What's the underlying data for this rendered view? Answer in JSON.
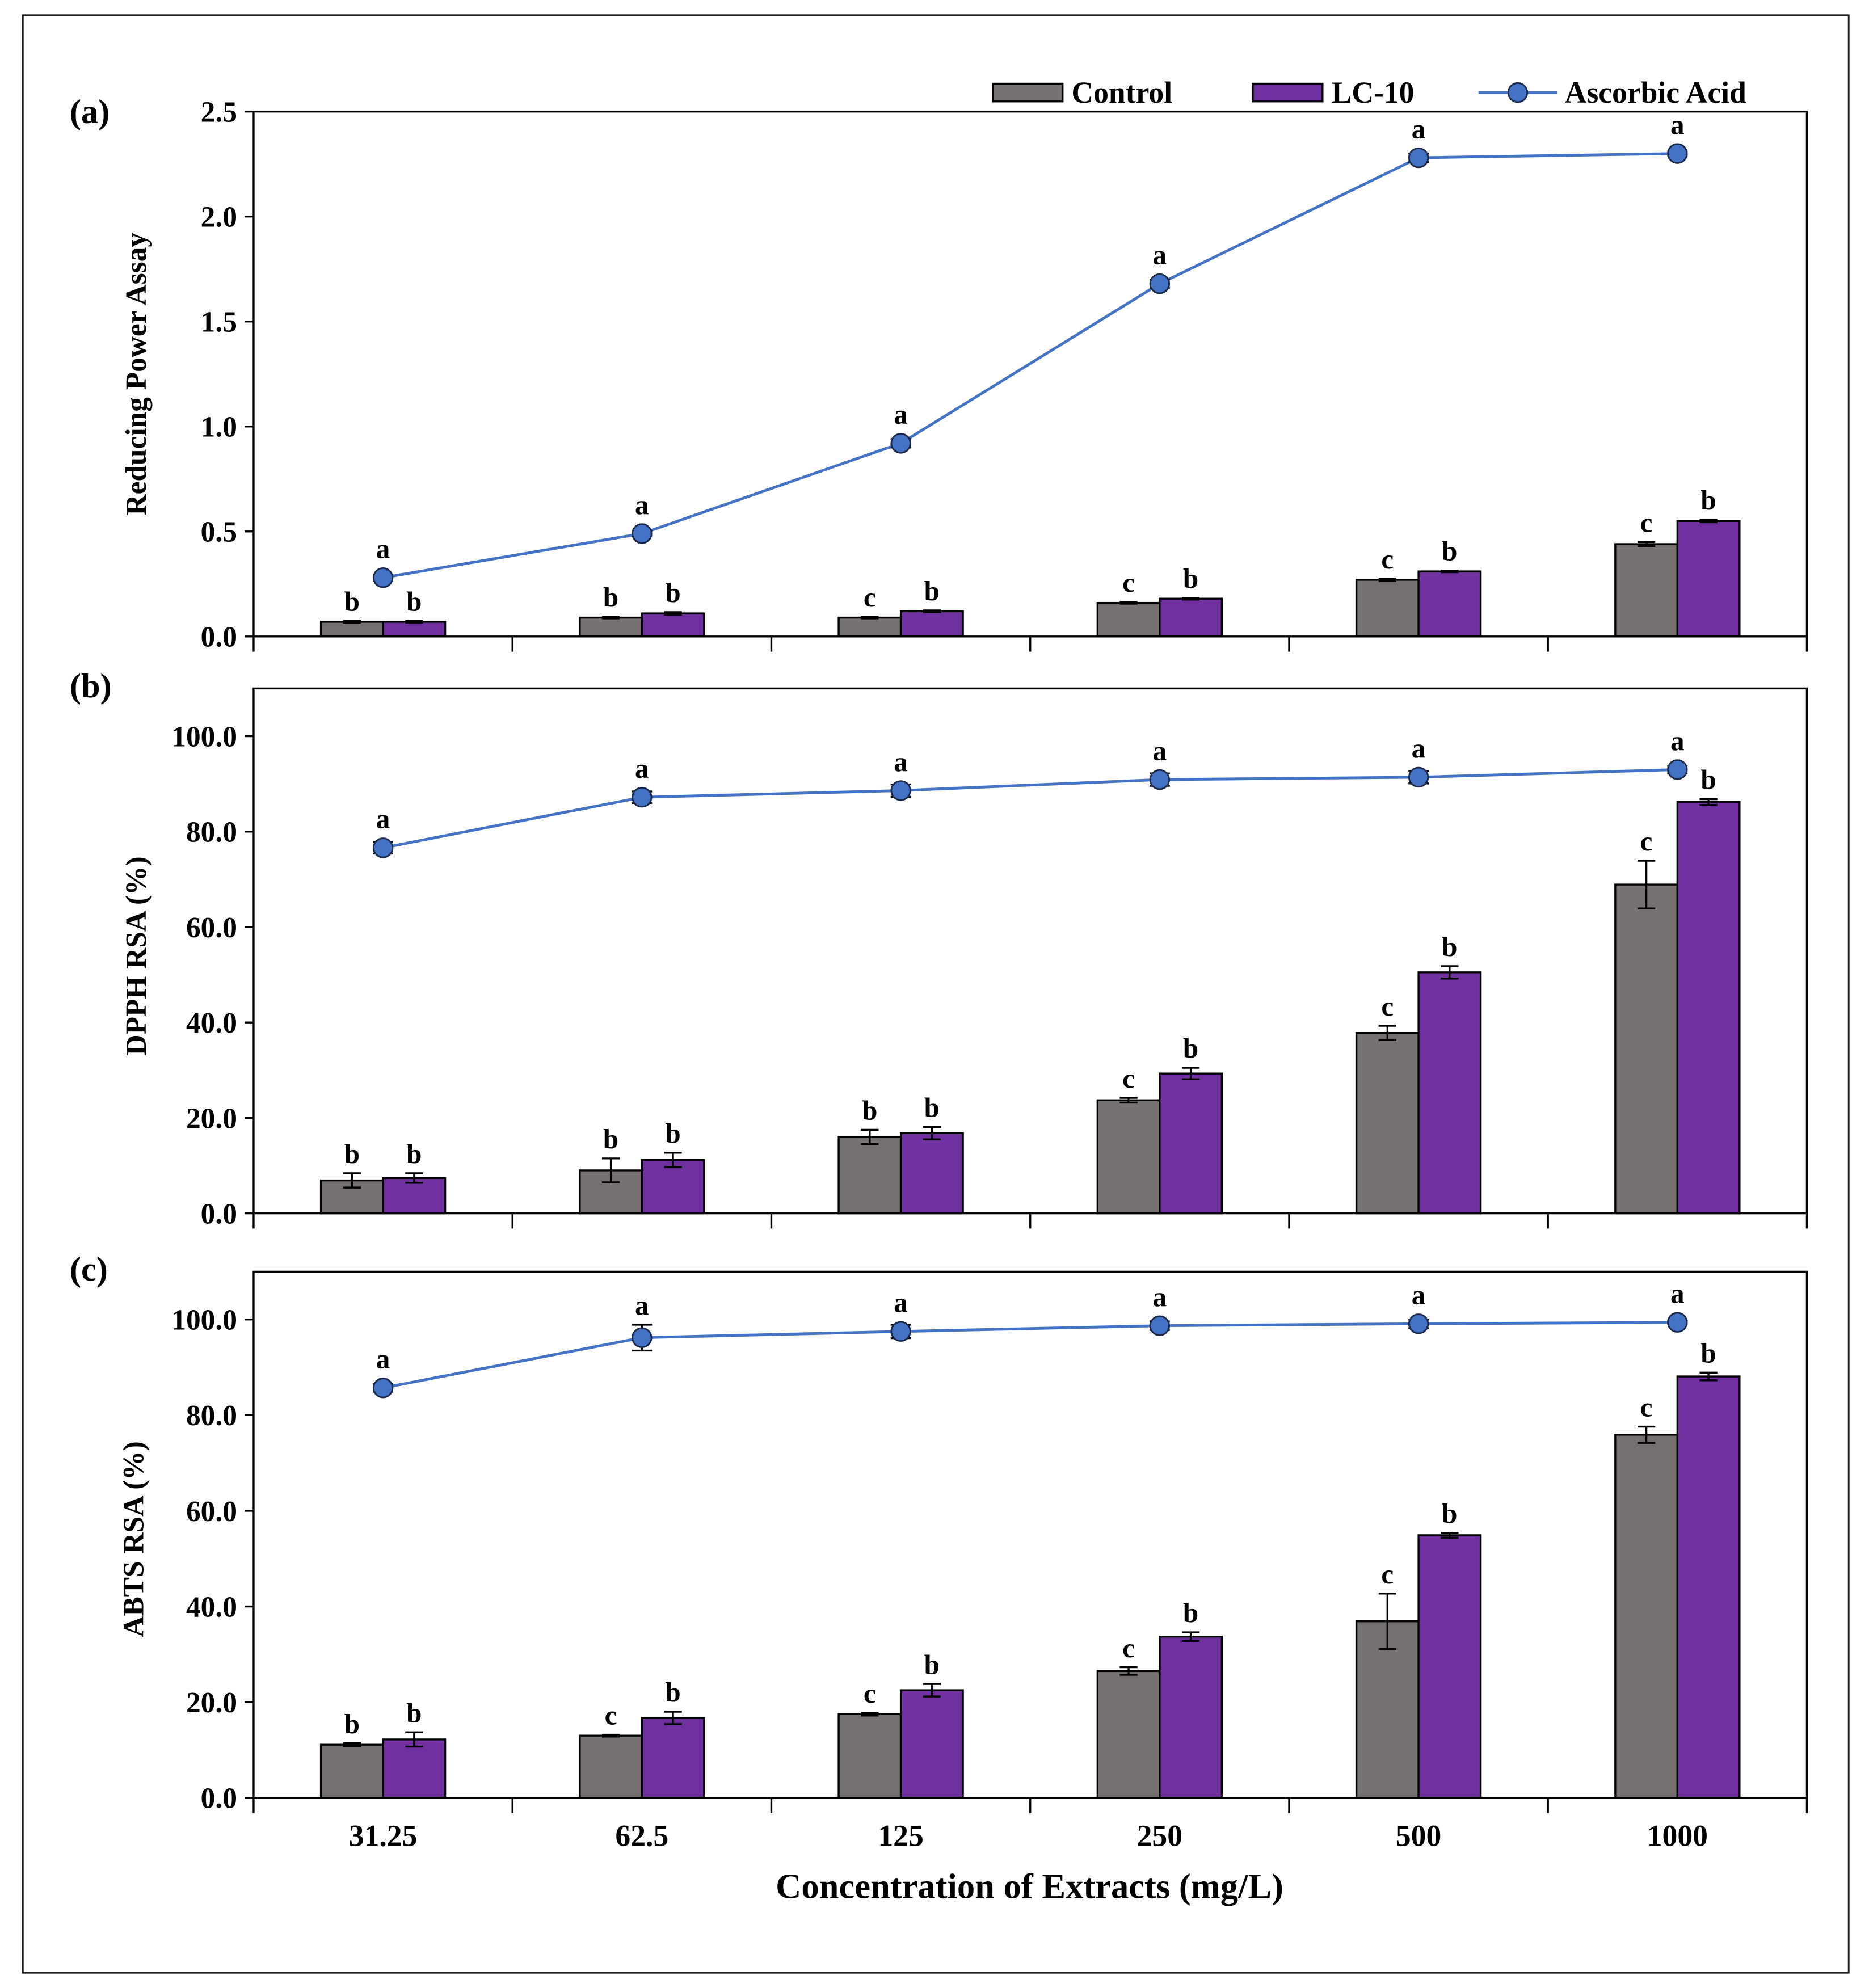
{
  "colors": {
    "control": "#767171",
    "lc10": "#7030a0",
    "ascorbic_line": "#4472c4",
    "ascorbic_marker": "#4472c4"
  },
  "chart_data": [
    {
      "type": "bar",
      "panel_label": "(a)",
      "ylabel": "Reducing Power Assay",
      "ylim": [
        0,
        2.5
      ],
      "y_ticks": [
        "0.0",
        "0.5",
        "1.0",
        "1.5",
        "2.0",
        "2.5"
      ],
      "series": [
        {
          "name": "Control",
          "type": "bar",
          "values": [
            0.07,
            0.09,
            0.09,
            0.16,
            0.27,
            0.44
          ],
          "errors": [
            0.004,
            0.004,
            0.004,
            0.004,
            0.006,
            0.01
          ],
          "letters": [
            "b",
            "b",
            "c",
            "c",
            "c",
            "c"
          ]
        },
        {
          "name": "LC-10",
          "type": "bar",
          "values": [
            0.07,
            0.11,
            0.12,
            0.18,
            0.31,
            0.55
          ],
          "errors": [
            0.004,
            0.006,
            0.004,
            0.004,
            0.004,
            0.006
          ],
          "letters": [
            "b",
            "b",
            "b",
            "b",
            "b",
            "b"
          ]
        },
        {
          "name": "Ascorbic Acid",
          "type": "line",
          "values": [
            0.28,
            0.49,
            0.92,
            1.68,
            2.28,
            2.3
          ],
          "errors": [
            0.01,
            0.01,
            0.02,
            0.02,
            0.02,
            0.01
          ],
          "letters": [
            "a",
            "a",
            "a",
            "a",
            "a",
            "a"
          ]
        }
      ]
    },
    {
      "type": "bar",
      "panel_label": "(b)",
      "ylabel": "DPPH RSA (%)",
      "ylim": [
        0,
        110
      ],
      "y_ticks": [
        "0.0",
        "20.0",
        "40.0",
        "60.0",
        "80.0",
        "100.0"
      ],
      "series": [
        {
          "type": "bar",
          "values": [
            6.9,
            9.0,
            16.0,
            23.7,
            37.8,
            68.9
          ],
          "errors": [
            1.5,
            2.5,
            1.5,
            0.5,
            1.5,
            5.0
          ],
          "letters": [
            "b",
            "b",
            "b",
            "c",
            "c",
            "c"
          ]
        },
        {
          "type": "bar",
          "values": [
            7.4,
            11.2,
            16.8,
            29.3,
            50.5,
            86.2
          ],
          "errors": [
            1.0,
            1.5,
            1.3,
            1.2,
            1.3,
            0.6
          ],
          "letters": [
            "b",
            "b",
            "b",
            "b",
            "b",
            "b"
          ]
        },
        {
          "type": "line",
          "values": [
            76.6,
            87.2,
            88.6,
            90.9,
            91.4,
            93.0
          ],
          "errors": [
            1.2,
            1.2,
            1.3,
            1.3,
            1.3,
            0.8
          ],
          "letters": [
            "a",
            "a",
            "a",
            "a",
            "a",
            "a"
          ]
        }
      ]
    },
    {
      "type": "bar",
      "panel_label": "(c)",
      "ylabel": "ABTS RSA (%)",
      "xlabel": "Concentration of Extracts (mg/L)",
      "categories": [
        "31.25",
        "62.5",
        "125",
        "250",
        "500",
        "1000"
      ],
      "ylim": [
        0,
        110
      ],
      "y_ticks": [
        "0.0",
        "20.0",
        "40.0",
        "60.0",
        "80.0",
        "100.0"
      ],
      "series": [
        {
          "type": "bar",
          "values": [
            11.1,
            13.0,
            17.5,
            26.5,
            36.9,
            75.9
          ],
          "errors": [
            0.3,
            0.2,
            0.3,
            0.8,
            5.8,
            1.7
          ],
          "letters": [
            "b",
            "c",
            "c",
            "c",
            "c",
            "c"
          ]
        },
        {
          "type": "bar",
          "values": [
            12.2,
            16.7,
            22.5,
            33.7,
            54.9,
            88.1
          ],
          "errors": [
            1.5,
            1.3,
            1.3,
            0.9,
            0.5,
            0.8
          ],
          "letters": [
            "b",
            "b",
            "b",
            "b",
            "b",
            "b"
          ]
        },
        {
          "type": "line",
          "values": [
            85.7,
            96.2,
            97.5,
            98.7,
            99.1,
            99.4
          ],
          "errors": [
            0.8,
            2.7,
            1.4,
            0.9,
            0.9,
            0.4
          ],
          "letters": [
            "a",
            "a",
            "a",
            "a",
            "a",
            "a"
          ]
        }
      ]
    }
  ]
}
